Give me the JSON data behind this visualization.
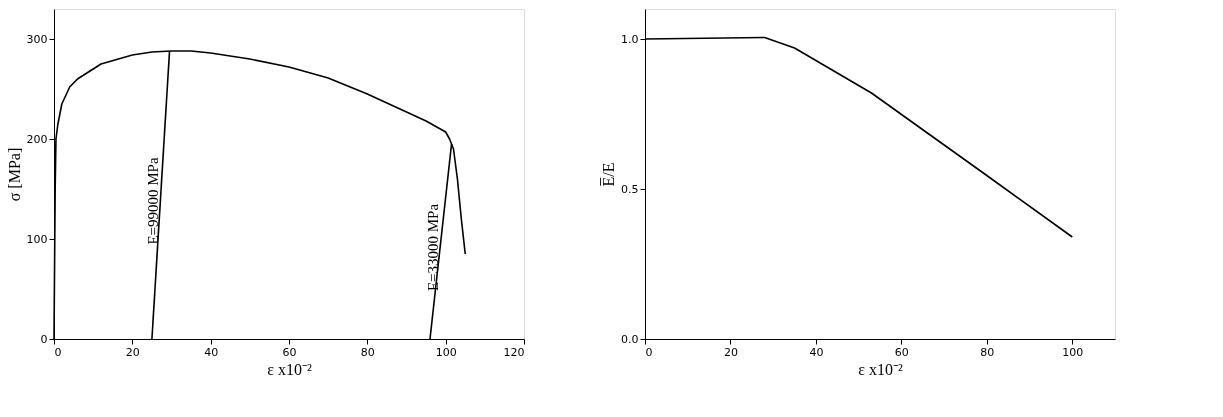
{
  "chart_data": [
    {
      "type": "line",
      "xlabel": "ε x10⁻²",
      "ylabel": "σ [MPa]",
      "xlim": [
        0,
        120
      ],
      "ylim": [
        0,
        330
      ],
      "xticks": [
        0,
        20,
        40,
        60,
        80,
        100,
        120
      ],
      "yticks": [
        0,
        100,
        200,
        300
      ],
      "grid": false,
      "marker": "none",
      "line_style": "solid",
      "series": [
        {
          "color": "#000000",
          "x": [
            0,
            0.3,
            0.5,
            1,
            2,
            4,
            6,
            10,
            12,
            20,
            25,
            30,
            35,
            40,
            50,
            60,
            70,
            80,
            90,
            95,
            100,
            101,
            102,
            103,
            104,
            105
          ],
          "values": [
            0,
            150,
            200,
            215,
            235,
            252,
            260,
            270,
            275,
            284,
            287,
            288,
            288,
            286,
            280,
            272,
            261,
            245,
            227,
            218,
            207,
            200,
            190,
            160,
            120,
            85
          ]
        },
        {
          "color": "#000000",
          "x": [
            25,
            29.5
          ],
          "values": [
            0,
            288
          ]
        },
        {
          "color": "#000000",
          "x": [
            96,
            101.5
          ],
          "values": [
            0,
            195
          ]
        }
      ],
      "annotations": [
        "E=99000 MPa",
        "E=33000 MPa"
      ]
    },
    {
      "type": "line",
      "xlabel": "ε x10⁻²",
      "ylabel": "E̅/E",
      "xlim": [
        0,
        110
      ],
      "ylim": [
        0,
        1.1
      ],
      "xticks": [
        0,
        20,
        40,
        60,
        80,
        100
      ],
      "yticks": [
        {
          "value": 0,
          "label": "0.0"
        },
        0.5,
        {
          "value": 1,
          "label": "1.0"
        }
      ],
      "grid": false,
      "marker": "none",
      "line_style": "solid",
      "series": [
        {
          "color": "#000000",
          "x": [
            0,
            28,
            35,
            53,
            80,
            100
          ],
          "values": [
            1.0,
            1.005,
            0.97,
            0.82,
            0.545,
            0.34
          ]
        }
      ]
    }
  ]
}
